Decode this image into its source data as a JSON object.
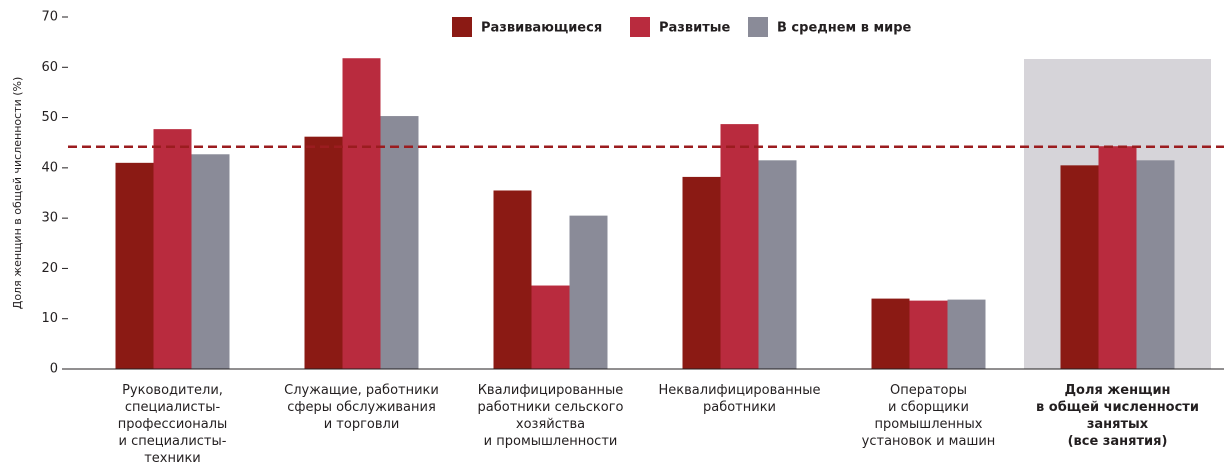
{
  "chart_data": {
    "type": "bar",
    "y_label": "Доля женщин в общей численности (%)",
    "categories": [
      "Руководители,\nспециалисты-\nпрофессионалы\nи специалисты-\nтехники",
      "Служащие, работники\nсферы обслуживания\nи торговли",
      "Квалифицированные\nработники сельского\nхозяйства\nи промышленности",
      "Неквалифицированные\nработники",
      "Операторы\nи сборщики\nпромышленных\nустановок и машин",
      "Доля женщин\nв общей численности\nзанятых\n(все занятия)"
    ],
    "series": [
      {
        "name": "Развивающиеся",
        "color": "#8b1a14",
        "values": [
          41,
          46.2,
          35.5,
          38.2,
          14,
          40.5
        ]
      },
      {
        "name": "Развитые",
        "color": "#b92b3e",
        "values": [
          47.7,
          61.8,
          16.6,
          48.7,
          13.6,
          44.3
        ]
      },
      {
        "name": "В среднем в мире",
        "color": "#8a8b98",
        "values": [
          42.7,
          50.3,
          30.5,
          41.5,
          13.8,
          41.5
        ]
      }
    ],
    "reference_line": 44.2,
    "reference_color": "#9b1c1f",
    "highlight_index": 5,
    "highlight_color": "#d6d4d9",
    "ylim": [
      0,
      70
    ],
    "yticks": [
      0,
      10,
      20,
      30,
      40,
      50,
      60,
      70
    ],
    "grid": false
  }
}
